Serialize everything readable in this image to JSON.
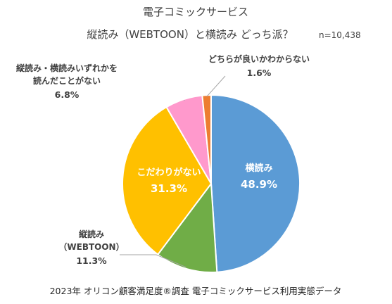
{
  "chart_data": {
    "type": "pie",
    "title": "電子コミックサービス",
    "subtitle": "縦読み（WEBTOON）と横読み どっち派？",
    "n_label": "n=10,438",
    "footer": "2023年 オリコン顧客満足度®調査 電子コミックサービス利用実態データ",
    "unit": "%",
    "start_angle_deg": 0,
    "direction": "clockwise",
    "legend": "none",
    "slices": [
      {
        "label_lines": [
          "横読み"
        ],
        "value_label": "48.9%",
        "value": 48.9,
        "color": "#5B9BD5",
        "label_color": "#ffffff"
      },
      {
        "label_lines": [
          "縦読み",
          "（WEBTOON）"
        ],
        "value_label": "11.3%",
        "value": 11.3,
        "color": "#70AD47",
        "label_color": "#404040"
      },
      {
        "label_lines": [
          "こだわりがない"
        ],
        "value_label": "31.3%",
        "value": 31.3,
        "color": "#FFC000",
        "label_color": "#ffffff"
      },
      {
        "label_lines": [
          "縦読み・横読みいずれかを",
          "読んだことがない"
        ],
        "value_label": "6.8%",
        "value": 6.8,
        "color": "#FF99CC",
        "label_color": "#404040"
      },
      {
        "label_lines": [
          "どちらが良いかわからない"
        ],
        "value_label": "1.6%",
        "value": 1.6,
        "color": "#ED7D31",
        "label_color": "#404040"
      }
    ]
  }
}
